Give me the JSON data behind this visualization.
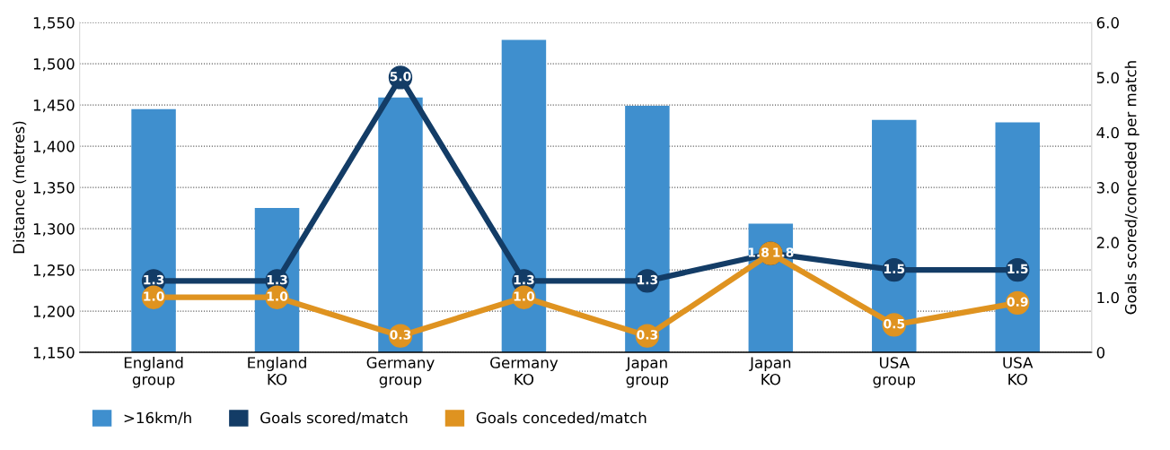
{
  "chart_data": {
    "type": "bar",
    "categories": [
      "England\ngroup",
      "England\nKO",
      "Germany\ngroup",
      "Germany\nKO",
      "Japan\ngroup",
      "Japan\nKO",
      "USA\ngroup",
      "USA\nKO"
    ],
    "series": [
      {
        "name": ">16km/h",
        "color": "#3f8fce",
        "values": [
          1445,
          1325,
          1459,
          1529,
          1449,
          1306,
          1432,
          1429
        ]
      },
      {
        "name": "Goals scored/match",
        "type": "line",
        "axis": "y2",
        "color": "#133c66",
        "values": [
          1.3,
          1.3,
          5.0,
          1.3,
          1.3,
          1.8,
          1.5,
          1.5
        ],
        "value_labels": [
          "1.3",
          "1.3",
          "5.0",
          "1.3",
          "1.3",
          "1.8",
          "1.5",
          "1.5"
        ]
      },
      {
        "name": "Goals conceded/match",
        "type": "line",
        "axis": "y2",
        "color": "#df9320",
        "values": [
          1.0,
          1.0,
          0.3,
          1.0,
          0.3,
          1.8,
          0.5,
          0.9
        ],
        "value_labels": [
          "1.0",
          "1.0",
          "0.3",
          "1.0",
          "0.3",
          "1.8",
          "0.5",
          "0.9"
        ]
      }
    ],
    "ylabel": "Distance (metres)",
    "y2label": "Goals scored/conceded per match",
    "ylim": [
      1150,
      1550
    ],
    "yticks": [
      {
        "value": 1150,
        "label": "1,150"
      },
      {
        "value": 1200,
        "label": "1,200"
      },
      {
        "value": 1250,
        "label": "1,250"
      },
      {
        "value": 1300,
        "label": "1,300"
      },
      {
        "value": 1350,
        "label": "1,350"
      },
      {
        "value": 1400,
        "label": "1,400"
      },
      {
        "value": 1450,
        "label": "1,450"
      },
      {
        "value": 1500,
        "label": "1,500"
      },
      {
        "value": 1550,
        "label": "1,550"
      }
    ],
    "y2lim": [
      0,
      6
    ],
    "y2ticks": [
      0,
      {
        "value": 1,
        "label": "1.0"
      },
      {
        "value": 2,
        "label": "2.0"
      },
      {
        "value": 3,
        "label": "3.0"
      },
      {
        "value": 4,
        "label": "4.0"
      },
      {
        "value": 5,
        "label": "5.0"
      },
      {
        "value": 6,
        "label": "6.0"
      }
    ],
    "grid": "y",
    "legend": "bottom left",
    "marker": "circle",
    "line_style": "solid"
  }
}
